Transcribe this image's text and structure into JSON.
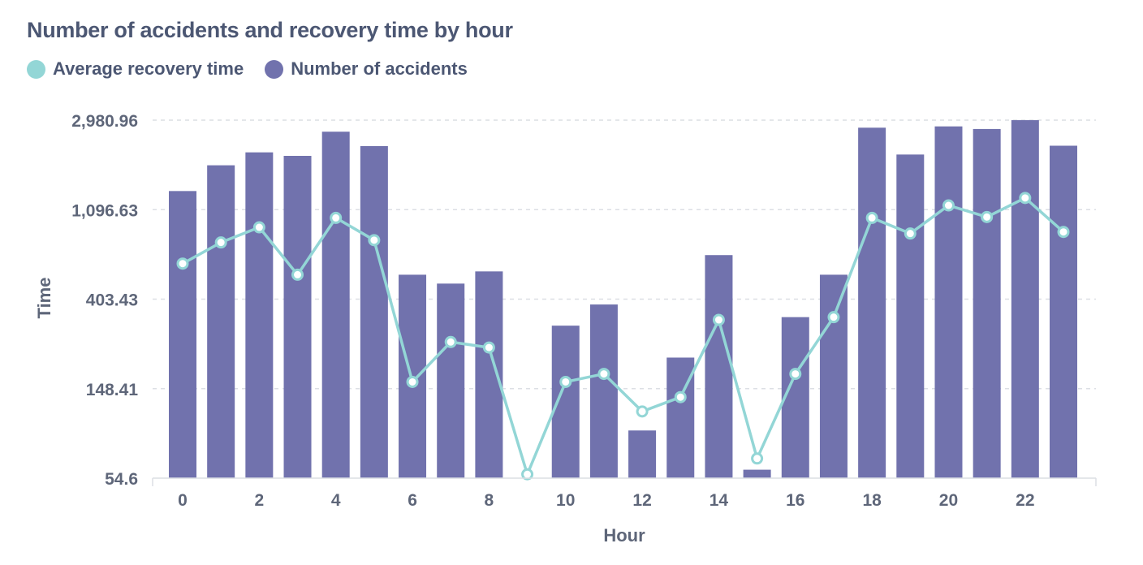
{
  "chart_data": {
    "type": "bar",
    "title": "Number of accidents and recovery time by hour",
    "xlabel": "Hour",
    "ylabel": "Time",
    "y_scale": "log",
    "ylim": [
      54.6,
      2980.96
    ],
    "y_ticks": [
      "54.6",
      "148.41",
      "403.43",
      "1,096.63",
      "2,980.96"
    ],
    "x_ticks": [
      "0",
      "2",
      "4",
      "6",
      "8",
      "10",
      "12",
      "14",
      "16",
      "18",
      "20",
      "22"
    ],
    "legend_position": "top-left",
    "grid": true,
    "categories": [
      0,
      1,
      2,
      3,
      4,
      5,
      6,
      7,
      8,
      9,
      10,
      11,
      12,
      13,
      14,
      15,
      16,
      17,
      18,
      19,
      20,
      21,
      22,
      23
    ],
    "series": [
      {
        "name": "Average recovery time",
        "kind": "line",
        "color": "#93d6d6",
        "values": [
          600,
          760,
          900,
          530,
          1000,
          780,
          160,
          250,
          235,
          57,
          160,
          175,
          115,
          135,
          320,
          68,
          175,
          330,
          1000,
          840,
          1150,
          1010,
          1250,
          855
        ]
      },
      {
        "name": "Number of accidents",
        "kind": "bar",
        "color": "#7172ad",
        "values": [
          1350,
          1800,
          2080,
          2000,
          2620,
          2230,
          530,
          480,
          550,
          0,
          300,
          380,
          93,
          210,
          660,
          60,
          330,
          530,
          2740,
          2030,
          2780,
          2700,
          2980,
          2240
        ]
      }
    ]
  }
}
